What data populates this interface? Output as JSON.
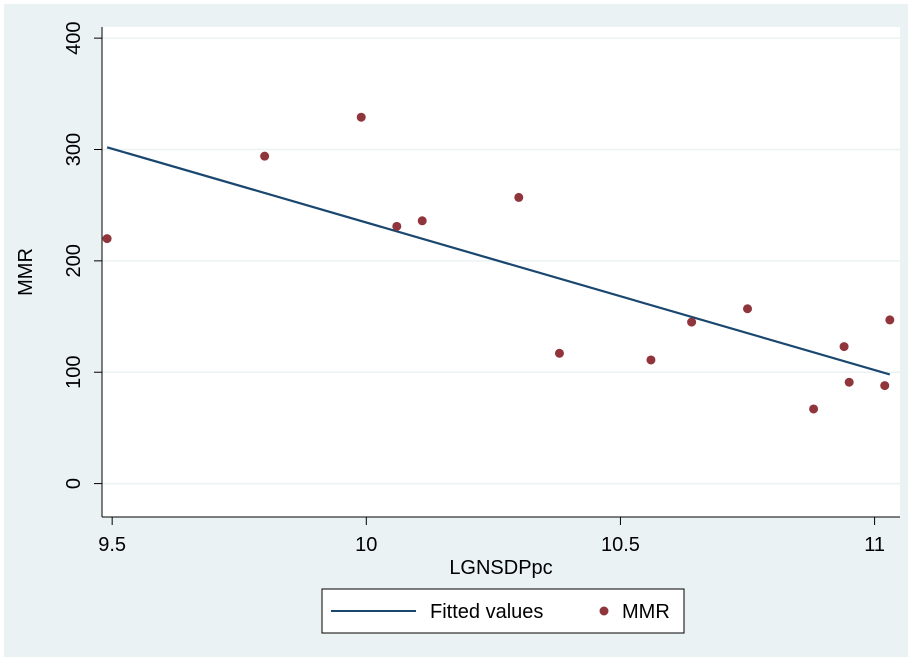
{
  "chart_data": {
    "type": "scatter",
    "xlabel": "LGNSDPpc",
    "ylabel": "MMR",
    "xlim": [
      9.48,
      11.05
    ],
    "ylim": [
      -30,
      410
    ],
    "xticks": [
      9.5,
      10,
      10.5,
      11
    ],
    "yticks": [
      0,
      100,
      200,
      300,
      400
    ],
    "x_tick_labels": [
      "9.5",
      "10",
      "10.5",
      "11"
    ],
    "y_tick_labels": [
      "0",
      "100",
      "200",
      "300",
      "400"
    ],
    "grid": true,
    "legend_position": "bottom",
    "series": [
      {
        "name": "Fitted values",
        "kind": "line",
        "color": "#1a476f",
        "x": [
          9.49,
          11.03
        ],
        "y": [
          302,
          98
        ]
      },
      {
        "name": "MMR",
        "kind": "scatter",
        "color": "#90353b",
        "x": [
          9.49,
          9.8,
          9.99,
          10.06,
          10.11,
          10.3,
          10.38,
          10.56,
          10.64,
          10.75,
          10.88,
          10.94,
          10.95,
          11.02,
          11.03
        ],
        "y": [
          220,
          294,
          329,
          231,
          236,
          257,
          117,
          111,
          145,
          157,
          67,
          123,
          91,
          88,
          147
        ]
      }
    ]
  }
}
